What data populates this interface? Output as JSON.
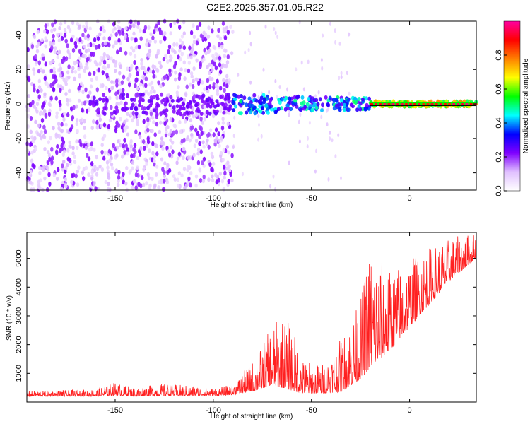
{
  "title": "C2E2.2025.357.01.05.R22",
  "chart_data": [
    {
      "type": "heatmap",
      "xlabel": "Height of straight line (km)",
      "ylabel": "Frequency (Hz)",
      "xlim": [
        -195,
        34
      ],
      "ylim": [
        -50,
        48
      ],
      "xticks": [
        -150,
        -100,
        -50,
        0
      ],
      "yticks": [
        -40,
        -20,
        0,
        20,
        40
      ],
      "colorbar": {
        "label": "Normalized spectral amplitude",
        "range": [
          0,
          1
        ],
        "ticks": [
          0.0,
          0.2,
          0.4,
          0.6,
          0.8
        ],
        "colors": [
          "#ffffff",
          "#e0c0ff",
          "#8000ff",
          "#0000ff",
          "#00ffff",
          "#00ff00",
          "#ffff00",
          "#ff8000",
          "#ff0000",
          "#ff00a0"
        ]
      },
      "regions": [
        {
          "x_range": [
            -195,
            -90
          ],
          "description_level": "low-amplitude broadband noise",
          "amplitude": 0.12
        },
        {
          "x_range": [
            -165,
            -145
          ],
          "y_center": 0,
          "amplitude": 0.22
        },
        {
          "x_range": [
            -90,
            -20
          ],
          "y_center": 0,
          "amplitude": 0.4
        },
        {
          "x_range": [
            -20,
            34
          ],
          "y_center": 0,
          "amplitude": 0.9
        }
      ],
      "line": {
        "y": 0,
        "x_range": [
          -20,
          34
        ],
        "color": "#00ff00"
      }
    },
    {
      "type": "line",
      "xlabel": "Height of straight line (km)",
      "ylabel": "SNR (10 * v/v)",
      "xlim": [
        -195,
        34
      ],
      "ylim": [
        0,
        5900
      ],
      "xticks": [
        -150,
        -100,
        -50,
        0
      ],
      "yticks": [
        1000,
        2000,
        3000,
        4000,
        5000
      ],
      "color": "#ff2020",
      "envelope": [
        {
          "x": -195,
          "base": 200,
          "peak": 380
        },
        {
          "x": -160,
          "base": 200,
          "peak": 450
        },
        {
          "x": -150,
          "base": 230,
          "peak": 700
        },
        {
          "x": -140,
          "base": 200,
          "peak": 500
        },
        {
          "x": -125,
          "base": 220,
          "peak": 650
        },
        {
          "x": -100,
          "base": 220,
          "peak": 500
        },
        {
          "x": -90,
          "base": 250,
          "peak": 600
        },
        {
          "x": -78,
          "base": 400,
          "peak": 1600
        },
        {
          "x": -70,
          "base": 600,
          "peak": 2700
        },
        {
          "x": -65,
          "base": 500,
          "peak": 3000
        },
        {
          "x": -60,
          "base": 400,
          "peak": 2700
        },
        {
          "x": -55,
          "base": 300,
          "peak": 1500
        },
        {
          "x": -45,
          "base": 300,
          "peak": 1300
        },
        {
          "x": -35,
          "base": 350,
          "peak": 2200
        },
        {
          "x": -25,
          "base": 800,
          "peak": 3600
        },
        {
          "x": -20,
          "base": 1200,
          "peak": 5500
        },
        {
          "x": -10,
          "base": 1800,
          "peak": 4600
        },
        {
          "x": 0,
          "base": 2600,
          "peak": 5000
        },
        {
          "x": 10,
          "base": 3400,
          "peak": 5400
        },
        {
          "x": 20,
          "base": 4200,
          "peak": 5700
        },
        {
          "x": 34,
          "base": 5000,
          "peak": 5900
        }
      ]
    }
  ]
}
